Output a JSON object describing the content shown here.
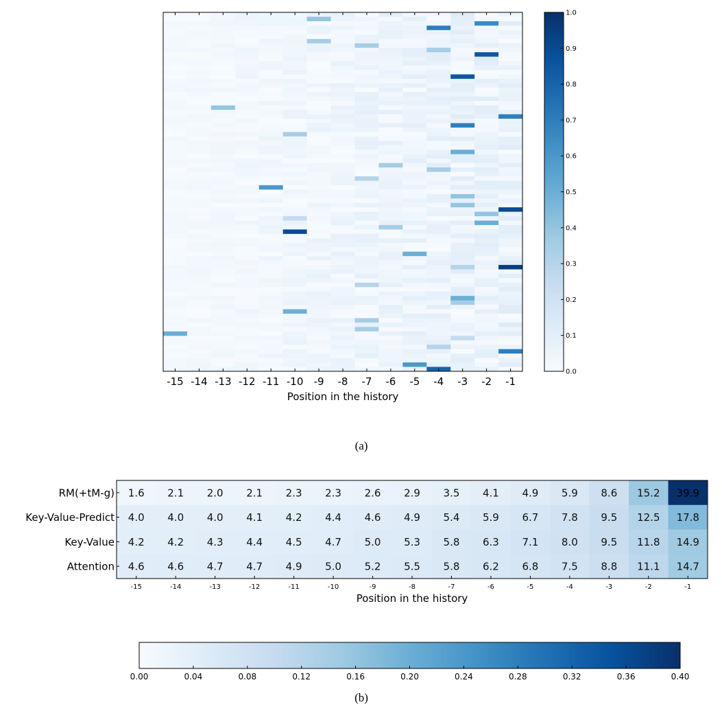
{
  "chart_data": [
    {
      "type": "heatmap",
      "caption": "(a)",
      "xlabel": "Position in the history",
      "x_categories": [
        "-15",
        "-14",
        "-13",
        "-12",
        "-11",
        "-10",
        "-9",
        "-8",
        "-7",
        "-6",
        "-5",
        "-4",
        "-3",
        "-2",
        "-1"
      ],
      "colorbar": {
        "range": [
          0.0,
          1.0
        ],
        "ticks": [
          "0.0",
          "0.1",
          "0.2",
          "0.3",
          "0.4",
          "0.5",
          "0.6",
          "0.7",
          "0.8",
          "0.9",
          "1.0"
        ],
        "placement": "right"
      },
      "colormap": [
        "#f7fbff",
        "#deebf7",
        "#c6dbef",
        "#9ecae1",
        "#6baed6",
        "#4292c6",
        "#2171b5",
        "#08519c",
        "#08306b"
      ],
      "notable_cells": [
        {
          "row": 1,
          "col": "-9",
          "value": 0.4
        },
        {
          "row": 2,
          "col": "-2",
          "value": 0.65
        },
        {
          "row": 3,
          "col": "-4",
          "value": 0.7
        },
        {
          "row": 6,
          "col": "-9",
          "value": 0.35
        },
        {
          "row": 7,
          "col": "-7",
          "value": 0.35
        },
        {
          "row": 8,
          "col": "-4",
          "value": 0.35
        },
        {
          "row": 9,
          "col": "-2",
          "value": 0.85
        },
        {
          "row": 14,
          "col": "-3",
          "value": 0.85
        },
        {
          "row": 21,
          "col": "-13",
          "value": 0.4
        },
        {
          "row": 23,
          "col": "-1",
          "value": 0.7
        },
        {
          "row": 25,
          "col": "-3",
          "value": 0.7
        },
        {
          "row": 27,
          "col": "-10",
          "value": 0.35
        },
        {
          "row": 31,
          "col": "-3",
          "value": 0.5
        },
        {
          "row": 34,
          "col": "-6",
          "value": 0.35
        },
        {
          "row": 35,
          "col": "-4",
          "value": 0.35
        },
        {
          "row": 37,
          "col": "-7",
          "value": 0.3
        },
        {
          "row": 39,
          "col": "-11",
          "value": 0.6
        },
        {
          "row": 41,
          "col": "-3",
          "value": 0.4
        },
        {
          "row": 43,
          "col": "-3",
          "value": 0.4
        },
        {
          "row": 44,
          "col": "-1",
          "value": 0.9
        },
        {
          "row": 45,
          "col": "-2",
          "value": 0.4
        },
        {
          "row": 46,
          "col": "-10",
          "value": 0.25
        },
        {
          "row": 47,
          "col": "-2",
          "value": 0.5
        },
        {
          "row": 48,
          "col": "-6",
          "value": 0.35
        },
        {
          "row": 49,
          "col": "-10",
          "value": 0.9
        },
        {
          "row": 54,
          "col": "-5",
          "value": 0.5
        },
        {
          "row": 57,
          "col": "-1",
          "value": 0.95
        },
        {
          "row": 57,
          "col": "-3",
          "value": 0.3
        },
        {
          "row": 61,
          "col": "-7",
          "value": 0.3
        },
        {
          "row": 64,
          "col": "-3",
          "value": 0.5
        },
        {
          "row": 65,
          "col": "-3",
          "value": 0.35
        },
        {
          "row": 67,
          "col": "-10",
          "value": 0.5
        },
        {
          "row": 69,
          "col": "-7",
          "value": 0.35
        },
        {
          "row": 71,
          "col": "-7",
          "value": 0.35
        },
        {
          "row": 72,
          "col": "-15",
          "value": 0.5
        },
        {
          "row": 73,
          "col": "-3",
          "value": 0.25
        },
        {
          "row": 75,
          "col": "-4",
          "value": 0.3
        },
        {
          "row": 76,
          "col": "-1",
          "value": 0.7
        },
        {
          "row": 79,
          "col": "-5",
          "value": 0.6
        },
        {
          "row": 80,
          "col": "-4",
          "value": 0.8
        }
      ]
    },
    {
      "type": "heatmap",
      "caption": "(b)",
      "xlabel": "Position in the history",
      "x_categories": [
        "-15",
        "-14",
        "-13",
        "-12",
        "-11",
        "-10",
        "-9",
        "-8",
        "-7",
        "-6",
        "-5",
        "-4",
        "-3",
        "-2",
        "-1"
      ],
      "colorbar": {
        "range": [
          0.0,
          0.4
        ],
        "ticks": [
          "0.00",
          "0.04",
          "0.08",
          "0.12",
          "0.16",
          "0.20",
          "0.24",
          "0.28",
          "0.32",
          "0.36",
          "0.40"
        ],
        "placement": "bottom"
      },
      "rows": [
        {
          "label": "RM(+tM-g)",
          "values": [
            "1.6",
            "2.1",
            "2.0",
            "2.1",
            "2.3",
            "2.3",
            "2.6",
            "2.9",
            "3.5",
            "4.1",
            "4.9",
            "5.9",
            "8.6",
            "15.2",
            "39.9"
          ]
        },
        {
          "label": "Key-Value-Predict",
          "values": [
            "4.0",
            "4.0",
            "4.0",
            "4.1",
            "4.2",
            "4.4",
            "4.6",
            "4.9",
            "5.4",
            "5.9",
            "6.7",
            "7.8",
            "9.5",
            "12.5",
            "17.8"
          ]
        },
        {
          "label": "Key-Value",
          "values": [
            "4.2",
            "4.2",
            "4.3",
            "4.4",
            "4.5",
            "4.7",
            "5.0",
            "5.3",
            "5.8",
            "6.3",
            "7.1",
            "8.0",
            "9.5",
            "11.8",
            "14.9"
          ]
        },
        {
          "label": "Attention",
          "values": [
            "4.6",
            "4.6",
            "4.7",
            "4.7",
            "4.9",
            "5.0",
            "5.2",
            "5.5",
            "5.8",
            "6.2",
            "6.8",
            "7.5",
            "8.8",
            "11.1",
            "14.7"
          ]
        }
      ]
    }
  ]
}
